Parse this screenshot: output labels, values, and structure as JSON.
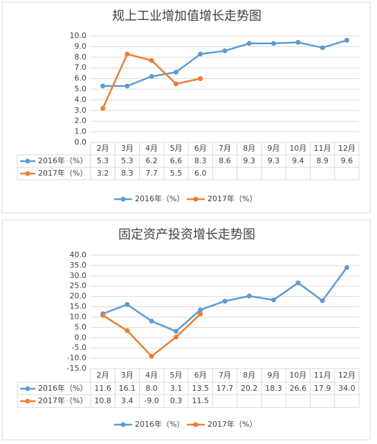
{
  "chart_data": [
    {
      "type": "line",
      "title": "规上工业增加值增长走势图",
      "categories": [
        "2月",
        "3月",
        "4月",
        "5月",
        "6月",
        "7月",
        "8月",
        "9月",
        "10月",
        "11月",
        "12月"
      ],
      "series": [
        {
          "name": "2016年（%）",
          "color": "#5b9bd5",
          "values": [
            5.3,
            5.3,
            6.2,
            6.6,
            8.3,
            8.6,
            9.3,
            9.3,
            9.4,
            8.9,
            9.6
          ],
          "value_labels": [
            "5.3",
            "5.3",
            "6.2",
            "6.6",
            "8.3",
            "8.6",
            "9.3",
            "9.3",
            "9.4",
            "8.9",
            "9.6"
          ]
        },
        {
          "name": "2017年（%）",
          "color": "#ed7d31",
          "values": [
            3.2,
            8.3,
            7.7,
            5.5,
            6.0,
            null,
            null,
            null,
            null,
            null,
            null
          ],
          "value_labels": [
            "3.2",
            "8.3",
            "7.7",
            "5.5",
            "6.0",
            null,
            null,
            null,
            null,
            null,
            null
          ]
        }
      ],
      "ylim": [
        0,
        10
      ],
      "yticks": [
        {
          "value": 0,
          "label": "0.0"
        },
        {
          "value": 1,
          "label": "1.0"
        },
        {
          "value": 2,
          "label": "2.0"
        },
        {
          "value": 3,
          "label": "3.0"
        },
        {
          "value": 4,
          "label": "4.0"
        },
        {
          "value": 5,
          "label": "5.0"
        },
        {
          "value": 6,
          "label": "6.0"
        },
        {
          "value": 7,
          "label": "7.0"
        },
        {
          "value": 8,
          "label": "8.0"
        },
        {
          "value": 9,
          "label": "9.0"
        },
        {
          "value": 10,
          "label": "10.0"
        }
      ],
      "grid": true,
      "legend": "bottom"
    },
    {
      "type": "line",
      "title": "固定资产投资增长走势图",
      "categories": [
        "2月",
        "3月",
        "4月",
        "5月",
        "6月",
        "7月",
        "8月",
        "9月",
        "10月",
        "11月",
        "12月"
      ],
      "series": [
        {
          "name": "2016年（%）",
          "color": "#5b9bd5",
          "values": [
            11.6,
            16.1,
            8.0,
            3.1,
            13.5,
            17.7,
            20.2,
            18.3,
            26.6,
            17.9,
            34.0
          ],
          "value_labels": [
            "11.6",
            "16.1",
            "8.0",
            "3.1",
            "13.5",
            "17.7",
            "20.2",
            "18.3",
            "26.6",
            "17.9",
            "34.0"
          ]
        },
        {
          "name": "2017年（%）",
          "color": "#ed7d31",
          "values": [
            10.8,
            3.4,
            -9.0,
            0.3,
            11.5,
            null,
            null,
            null,
            null,
            null,
            null
          ],
          "value_labels": [
            "10.8",
            "3.4",
            "-9.0",
            "0.3",
            "11.5",
            null,
            null,
            null,
            null,
            null,
            null
          ]
        }
      ],
      "ylim": [
        -15,
        40
      ],
      "yticks": [
        {
          "value": -15,
          "label": "-15.0"
        },
        {
          "value": -10,
          "label": "-10.0"
        },
        {
          "value": -5,
          "label": "-5.0"
        },
        {
          "value": 0,
          "label": "0.0"
        },
        {
          "value": 5,
          "label": "5.0"
        },
        {
          "value": 10,
          "label": "10.0"
        },
        {
          "value": 15,
          "label": "15.0"
        },
        {
          "value": 20,
          "label": "20.0"
        },
        {
          "value": 25,
          "label": "25.0"
        },
        {
          "value": 30,
          "label": "30.0"
        },
        {
          "value": 35,
          "label": "35.0"
        },
        {
          "value": 40,
          "label": "40.0"
        }
      ],
      "grid": true,
      "legend": "bottom"
    }
  ]
}
